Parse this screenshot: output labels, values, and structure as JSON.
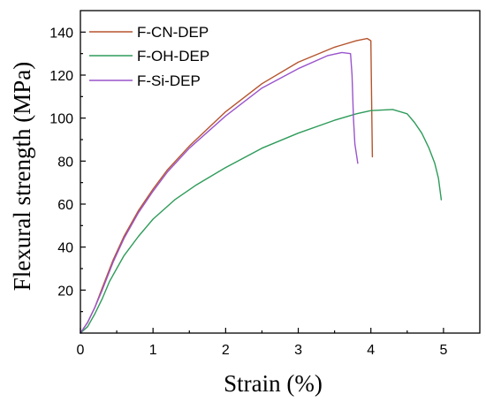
{
  "chart_data": {
    "type": "line",
    "xlabel": "Strain (%)",
    "ylabel": "Flexural strength (MPa)",
    "xlim": [
      0,
      5.5
    ],
    "ylim": [
      0,
      150
    ],
    "xticks": [
      0,
      1,
      2,
      3,
      4,
      5
    ],
    "yticks": [
      20,
      40,
      60,
      80,
      100,
      120,
      140
    ],
    "legend_position": "top-left",
    "series": [
      {
        "name": "F-CN-DEP",
        "color": "#b5542e",
        "points": [
          [
            0,
            0
          ],
          [
            0.1,
            5
          ],
          [
            0.2,
            12
          ],
          [
            0.3,
            21
          ],
          [
            0.45,
            34
          ],
          [
            0.6,
            45
          ],
          [
            0.8,
            57
          ],
          [
            1.0,
            67
          ],
          [
            1.2,
            76
          ],
          [
            1.5,
            87
          ],
          [
            2.0,
            103
          ],
          [
            2.5,
            116
          ],
          [
            3.0,
            126
          ],
          [
            3.5,
            133
          ],
          [
            3.8,
            136
          ],
          [
            3.95,
            137
          ],
          [
            4.0,
            136
          ],
          [
            4.01,
            110
          ],
          [
            4.02,
            82
          ]
        ]
      },
      {
        "name": "F-OH-DEP",
        "color": "#2e9b5a",
        "points": [
          [
            0,
            0
          ],
          [
            0.1,
            3
          ],
          [
            0.2,
            9
          ],
          [
            0.3,
            16
          ],
          [
            0.4,
            24
          ],
          [
            0.6,
            36
          ],
          [
            0.8,
            45
          ],
          [
            1.0,
            53
          ],
          [
            1.3,
            62
          ],
          [
            1.6,
            69
          ],
          [
            2.0,
            77
          ],
          [
            2.5,
            86
          ],
          [
            3.0,
            93
          ],
          [
            3.5,
            99
          ],
          [
            3.8,
            102
          ],
          [
            4.0,
            103.5
          ],
          [
            4.3,
            104
          ],
          [
            4.5,
            102
          ],
          [
            4.6,
            98
          ],
          [
            4.7,
            93
          ],
          [
            4.8,
            86
          ],
          [
            4.88,
            79
          ],
          [
            4.93,
            72
          ],
          [
            4.97,
            62
          ]
        ]
      },
      {
        "name": "F-Si-DEP",
        "color": "#9a55cc",
        "points": [
          [
            0,
            0
          ],
          [
            0.1,
            5
          ],
          [
            0.2,
            12
          ],
          [
            0.3,
            20
          ],
          [
            0.45,
            33
          ],
          [
            0.6,
            44
          ],
          [
            0.8,
            56
          ],
          [
            1.0,
            66
          ],
          [
            1.2,
            75
          ],
          [
            1.5,
            86
          ],
          [
            2.0,
            101
          ],
          [
            2.5,
            114
          ],
          [
            3.0,
            123
          ],
          [
            3.4,
            129
          ],
          [
            3.6,
            130.5
          ],
          [
            3.72,
            130
          ],
          [
            3.74,
            120
          ],
          [
            3.76,
            100
          ],
          [
            3.78,
            88
          ],
          [
            3.82,
            79
          ]
        ]
      }
    ]
  }
}
